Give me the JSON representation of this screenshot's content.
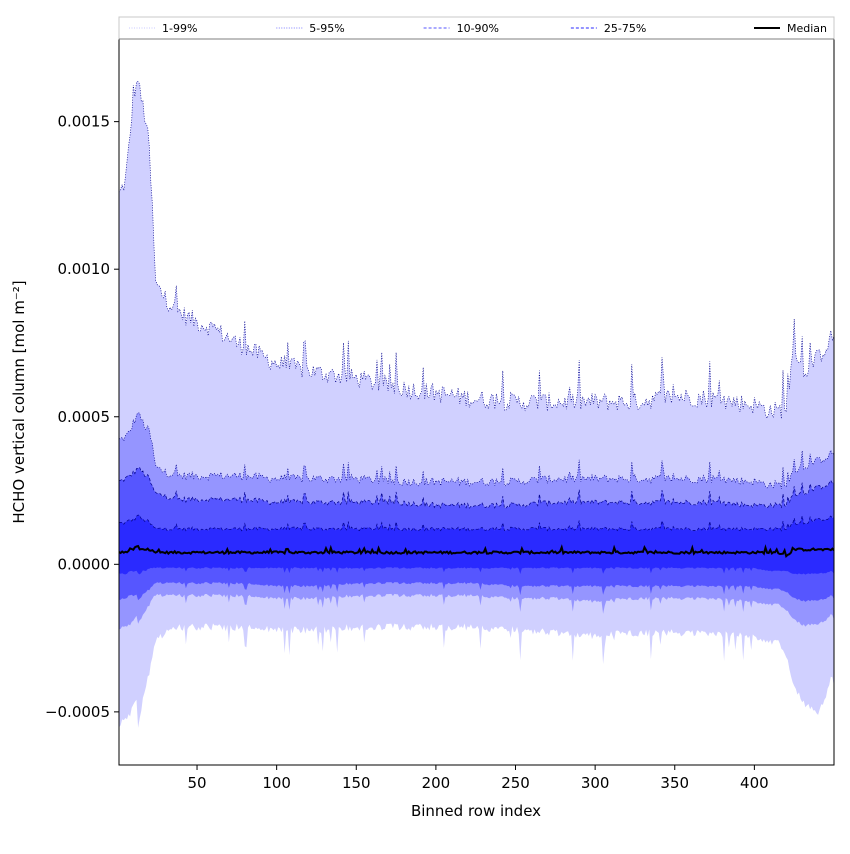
{
  "chart_data": {
    "type": "area",
    "xlabel": "Binned row index",
    "ylabel": "HCHO vertical column [mol m⁻²]",
    "xlim": [
      1,
      450
    ],
    "ylim": [
      -0.00068,
      0.00178
    ],
    "x_ticks": [
      50,
      100,
      150,
      200,
      250,
      300,
      350,
      400
    ],
    "x_tick_labels": [
      "50",
      "100",
      "150",
      "200",
      "250",
      "300",
      "350",
      "400"
    ],
    "y_ticks": [
      -0.0005,
      0.0,
      0.0005,
      0.001,
      0.0015
    ],
    "y_tick_labels": [
      "−0.0005",
      "0.0000",
      "0.0005",
      "0.0010",
      "0.0015"
    ],
    "grid": false,
    "legend_position": "top, spanning full width",
    "x_knots": [
      1,
      5,
      8,
      10,
      12,
      13,
      14,
      16,
      18,
      20,
      22,
      24,
      30,
      40,
      50,
      60,
      75,
      100,
      125,
      150,
      175,
      200,
      225,
      250,
      275,
      300,
      325,
      350,
      375,
      400,
      410,
      415,
      420,
      425,
      430,
      440,
      450
    ],
    "series": [
      {
        "name": "1-99%",
        "color": "#d0d0ff",
        "linestyle": "dotted",
        "upper_knots": [
          0.00125,
          0.0013,
          0.00145,
          0.0016,
          0.00162,
          0.00165,
          0.0016,
          0.00155,
          0.0015,
          0.0014,
          0.0012,
          0.00095,
          0.0009,
          0.00085,
          0.00082,
          0.0008,
          0.00075,
          0.00068,
          0.00065,
          0.00063,
          0.0006,
          0.00058,
          0.00056,
          0.00055,
          0.00055,
          0.00055,
          0.00055,
          0.00057,
          0.00056,
          0.00054,
          0.00052,
          0.00052,
          0.00053,
          0.00075,
          0.00065,
          0.0007,
          0.00078
        ],
        "lower_knots": [
          -0.00055,
          -0.0005,
          -0.0005,
          -0.00045,
          -0.00045,
          -0.00055,
          -0.0005,
          -0.00045,
          -0.0004,
          -0.00035,
          -0.0003,
          -0.00025,
          -0.00022,
          -0.0002,
          -0.0002,
          -0.0002,
          -0.0002,
          -0.00021,
          -0.00021,
          -0.0002,
          -0.0002,
          -0.0002,
          -0.0002,
          -0.00021,
          -0.00022,
          -0.00023,
          -0.00022,
          -0.00022,
          -0.00022,
          -0.00023,
          -0.00025,
          -0.00025,
          -0.0003,
          -0.0004,
          -0.00045,
          -0.0005,
          -0.00035
        ],
        "amp": 4e-05
      },
      {
        "name": "5-95%",
        "color": "#9595ff",
        "linestyle": "dotted",
        "upper_knots": [
          0.00042,
          0.00043,
          0.00045,
          0.00048,
          0.0005,
          0.00052,
          0.0005,
          0.00048,
          0.00046,
          0.00045,
          0.0004,
          0.00033,
          0.00031,
          0.0003,
          0.0003,
          0.0003,
          0.0003,
          0.00029,
          0.00029,
          0.00029,
          0.00028,
          0.00028,
          0.00028,
          0.00028,
          0.00029,
          0.00029,
          0.00029,
          0.00029,
          0.00029,
          0.00028,
          0.00027,
          0.00027,
          0.00027,
          0.00032,
          0.00033,
          0.00035,
          0.00038
        ],
        "lower_knots": [
          -0.00022,
          -0.0002,
          -0.0002,
          -0.00018,
          -0.00017,
          -0.0002,
          -0.00018,
          -0.00017,
          -0.00015,
          -0.00013,
          -0.00011,
          -0.0001,
          -0.0001,
          -0.0001,
          -0.0001,
          -0.0001,
          -0.0001,
          -0.00011,
          -0.00011,
          -0.0001,
          -0.0001,
          -0.0001,
          -0.0001,
          -0.00011,
          -0.00011,
          -0.00012,
          -0.00011,
          -0.00011,
          -0.00011,
          -0.00012,
          -0.00013,
          -0.00013,
          -0.00015,
          -0.00018,
          -0.0002,
          -0.0002,
          -0.00016
        ],
        "amp": 1.8e-05
      },
      {
        "name": "10-90%",
        "color": "#5656ff",
        "linestyle": "dashed",
        "upper_knots": [
          0.00028,
          0.00029,
          0.0003,
          0.00031,
          0.00032,
          0.00033,
          0.00032,
          0.00031,
          0.0003,
          0.00029,
          0.00026,
          0.00024,
          0.00023,
          0.00022,
          0.00022,
          0.00022,
          0.00022,
          0.00021,
          0.00021,
          0.00021,
          0.00021,
          0.0002,
          0.0002,
          0.0002,
          0.00021,
          0.00021,
          0.00021,
          0.00021,
          0.00021,
          0.0002,
          0.0002,
          0.0002,
          0.0002,
          0.00024,
          0.00024,
          0.00026,
          0.00028
        ],
        "lower_knots": [
          -0.00012,
          -0.00011,
          -0.0001,
          -0.0001,
          -0.0001,
          -0.00012,
          -0.00011,
          -0.0001,
          -9e-05,
          -8e-05,
          -7e-05,
          -6e-05,
          -6e-05,
          -6e-05,
          -6e-05,
          -6e-05,
          -6e-05,
          -7e-05,
          -7e-05,
          -6e-05,
          -6e-05,
          -6e-05,
          -6e-05,
          -7e-05,
          -7e-05,
          -7e-05,
          -7e-05,
          -7e-05,
          -7e-05,
          -7e-05,
          -8e-05,
          -8e-05,
          -9e-05,
          -0.00011,
          -0.00012,
          -0.00012,
          -0.0001
        ],
        "amp": 1.2e-05
      },
      {
        "name": "25-75%",
        "color": "#2a2aff",
        "linestyle": "dashed",
        "upper_knots": [
          0.00014,
          0.00014,
          0.00015,
          0.00015,
          0.00016,
          0.00017,
          0.00016,
          0.00015,
          0.00015,
          0.00014,
          0.00013,
          0.00012,
          0.00012,
          0.00012,
          0.00012,
          0.00012,
          0.00012,
          0.00012,
          0.00012,
          0.00012,
          0.00012,
          0.00012,
          0.00012,
          0.00012,
          0.00012,
          0.00012,
          0.00012,
          0.00012,
          0.00012,
          0.00012,
          0.00012,
          0.00012,
          0.00012,
          0.00014,
          0.00014,
          0.00015,
          0.00016
        ],
        "lower_knots": [
          -3e-05,
          -3e-05,
          -2e-05,
          -2e-05,
          -2e-05,
          -3e-05,
          -3e-05,
          -2e-05,
          -2e-05,
          -1e-05,
          -1e-05,
          -1e-05,
          -1e-05,
          -1e-05,
          -1e-05,
          -1e-05,
          -1e-05,
          -1e-05,
          -1e-05,
          -1e-05,
          -1e-05,
          -1e-05,
          -1e-05,
          -1e-05,
          -1e-05,
          -1e-05,
          -1e-05,
          -1e-05,
          -1e-05,
          -1e-05,
          -2e-05,
          -2e-05,
          -2e-05,
          -3e-05,
          -3e-05,
          -3e-05,
          -2e-05
        ],
        "amp": 8e-06
      }
    ],
    "median": {
      "name": "Median",
      "color": "#000000",
      "linestyle": "solid",
      "knots": [
        4e-05,
        4e-05,
        5e-05,
        5e-05,
        6e-05,
        6e-05,
        5e-05,
        5e-05,
        5e-05,
        5e-05,
        5e-05,
        4e-05,
        4e-05,
        4e-05,
        4e-05,
        4e-05,
        4e-05,
        4e-05,
        4e-05,
        4e-05,
        4e-05,
        4e-05,
        4e-05,
        4e-05,
        4e-05,
        4e-05,
        4e-05,
        4e-05,
        4e-05,
        4e-05,
        4e-05,
        4e-05,
        3e-05,
        5e-05,
        5e-05,
        5e-05,
        5e-05
      ],
      "amp": 5e-06
    },
    "legend": [
      {
        "label": "1-99%",
        "color": "#c8c8ff",
        "linestyle": "dotted"
      },
      {
        "label": "5-95%",
        "color": "#7f7fff",
        "linestyle": "dotted"
      },
      {
        "label": "10-90%",
        "color": "#5555ff",
        "linestyle": "dashed"
      },
      {
        "label": "25-75%",
        "color": "#2a2aff",
        "linestyle": "dashed"
      },
      {
        "label": "Median",
        "color": "#000000",
        "linestyle": "solid"
      }
    ]
  }
}
